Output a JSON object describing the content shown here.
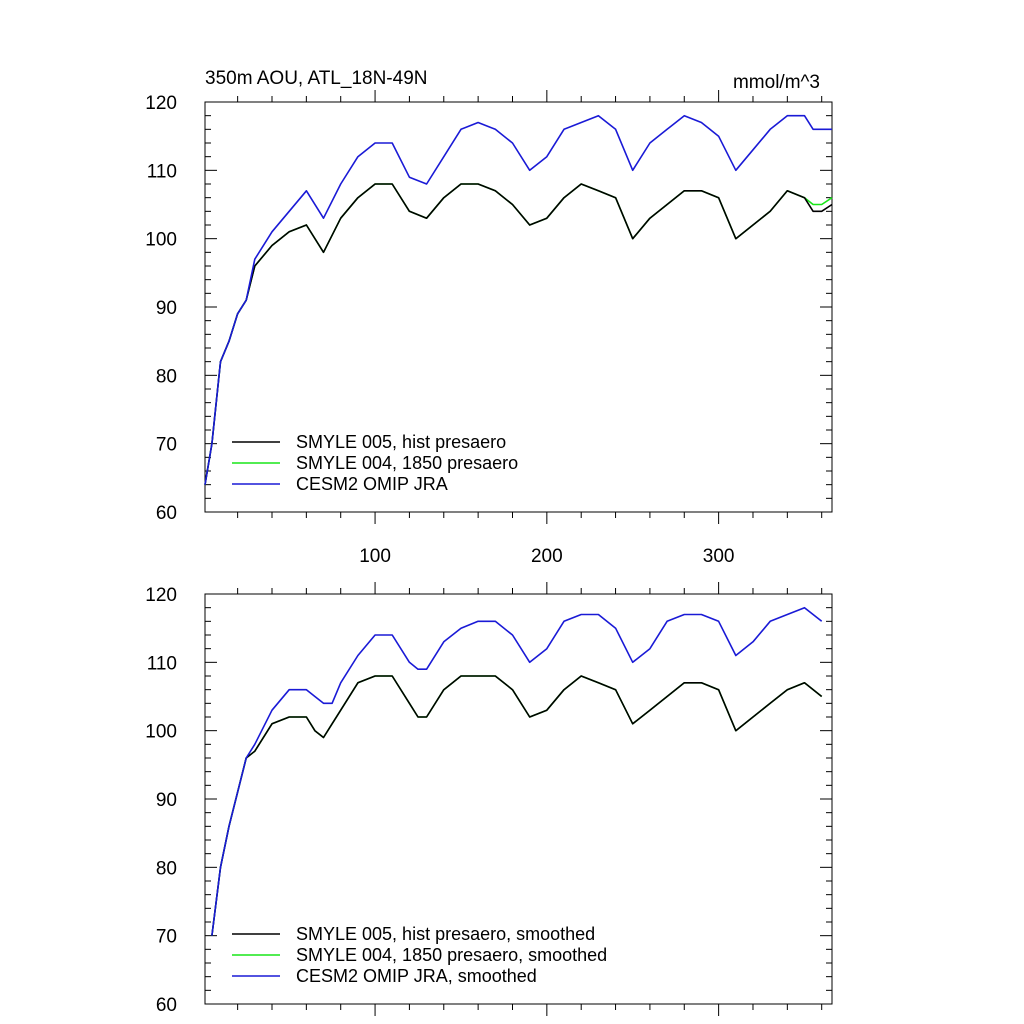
{
  "header": {
    "title": "350m AOU, ATL_18N-49N",
    "units": "mmol/m^3"
  },
  "colors": {
    "smyle005": "#000000",
    "smyle004": "#19e619",
    "cesm2": "#1a1ad6"
  },
  "chart_data": [
    {
      "type": "line",
      "panel": "top",
      "title": "350m AOU, ATL_18N-49N",
      "units_label": "mmol/m^3",
      "xlabel": "",
      "ylabel": "",
      "xlim": [
        1,
        366
      ],
      "ylim": [
        60,
        120
      ],
      "yticks": [
        "60",
        "70",
        "80",
        "90",
        "100",
        "110",
        "120"
      ],
      "xticks": [
        "100",
        "200",
        "300"
      ],
      "legend_placement": "bottom-left",
      "legend": [
        "SMYLE 005, hist presaero",
        "SMYLE 004, 1850 presaero",
        "CESM2 OMIP JRA"
      ],
      "series": [
        {
          "name": "SMYLE 005, hist presaero",
          "color": "#000000",
          "x": [
            1,
            5,
            10,
            15,
            20,
            25,
            30,
            40,
            50,
            60,
            70,
            80,
            90,
            100,
            110,
            120,
            130,
            140,
            150,
            160,
            170,
            180,
            190,
            200,
            210,
            220,
            230,
            240,
            250,
            260,
            270,
            280,
            290,
            300,
            310,
            320,
            330,
            340,
            350,
            355,
            360,
            366
          ],
          "y": [
            64,
            70,
            82,
            85,
            89,
            91,
            96,
            99,
            101,
            102,
            98,
            103,
            106,
            108,
            108,
            104,
            103,
            106,
            108,
            108,
            107,
            105,
            102,
            103,
            106,
            108,
            107,
            106,
            100,
            103,
            105,
            107,
            107,
            106,
            100,
            102,
            104,
            107,
            106,
            104,
            104,
            105
          ]
        },
        {
          "name": "SMYLE 004, 1850 presaero",
          "color": "#19e619",
          "x": [
            1,
            5,
            10,
            15,
            20,
            25,
            30,
            40,
            50,
            60,
            70,
            80,
            90,
            100,
            110,
            120,
            130,
            140,
            150,
            160,
            170,
            180,
            190,
            200,
            210,
            220,
            230,
            240,
            250,
            260,
            270,
            280,
            290,
            300,
            310,
            320,
            330,
            340,
            350,
            355,
            360,
            366
          ],
          "y": [
            64,
            70,
            82,
            85,
            89,
            91,
            96,
            99,
            101,
            102,
            98,
            103,
            106,
            108,
            108,
            104,
            103,
            106,
            108,
            108,
            107,
            105,
            102,
            103,
            106,
            108,
            107,
            106,
            100,
            103,
            105,
            107,
            107,
            106,
            100,
            102,
            104,
            107,
            106,
            105,
            105,
            106
          ]
        },
        {
          "name": "CESM2 OMIP JRA",
          "color": "#1a1ad6",
          "x": [
            1,
            5,
            10,
            15,
            20,
            25,
            30,
            40,
            50,
            60,
            70,
            80,
            90,
            100,
            110,
            120,
            130,
            140,
            150,
            160,
            170,
            180,
            190,
            200,
            210,
            220,
            230,
            240,
            250,
            260,
            270,
            280,
            290,
            300,
            310,
            320,
            330,
            340,
            350,
            355,
            360,
            366
          ],
          "y": [
            64,
            70,
            82,
            85,
            89,
            91,
            97,
            101,
            104,
            107,
            103,
            108,
            112,
            114,
            114,
            109,
            108,
            112,
            116,
            117,
            116,
            114,
            110,
            112,
            116,
            117,
            118,
            116,
            110,
            114,
            116,
            118,
            117,
            115,
            110,
            113,
            116,
            118,
            118,
            116,
            116,
            116
          ]
        }
      ]
    },
    {
      "type": "line",
      "panel": "bottom",
      "title": "",
      "xlabel": "",
      "ylabel": "",
      "xlim": [
        1,
        366
      ],
      "ylim": [
        60,
        120
      ],
      "yticks": [
        "60",
        "70",
        "80",
        "90",
        "100",
        "110",
        "120"
      ],
      "legend_placement": "bottom-left",
      "legend": [
        "SMYLE 005, hist presaero, smoothed",
        "SMYLE 004, 1850 presaero, smoothed",
        "CESM2 OMIP JRA, smoothed"
      ],
      "series": [
        {
          "name": "SMYLE 005, hist presaero, smoothed",
          "color": "#000000",
          "x": [
            5,
            10,
            15,
            20,
            25,
            30,
            40,
            50,
            60,
            65,
            70,
            75,
            80,
            90,
            100,
            110,
            120,
            125,
            130,
            140,
            150,
            160,
            170,
            180,
            190,
            200,
            210,
            220,
            230,
            240,
            250,
            260,
            270,
            280,
            290,
            300,
            310,
            320,
            330,
            340,
            350,
            360
          ],
          "y": [
            70,
            80,
            86,
            91,
            96,
            97,
            101,
            102,
            102,
            100,
            99,
            101,
            103,
            107,
            108,
            108,
            104,
            102,
            102,
            106,
            108,
            108,
            108,
            106,
            102,
            103,
            106,
            108,
            107,
            106,
            101,
            103,
            105,
            107,
            107,
            106,
            100,
            102,
            104,
            106,
            107,
            105
          ]
        },
        {
          "name": "SMYLE 004, 1850 presaero, smoothed",
          "color": "#19e619",
          "x": [
            5,
            10,
            15,
            20,
            25,
            30,
            40,
            50,
            60,
            65,
            70,
            75,
            80,
            90,
            100,
            110,
            120,
            125,
            130,
            140,
            150,
            160,
            170,
            180,
            190,
            200,
            210,
            220,
            230,
            240,
            250,
            260,
            270,
            280,
            290,
            300,
            310,
            320,
            330,
            340,
            350,
            360
          ],
          "y": [
            70,
            80,
            86,
            91,
            96,
            97,
            101,
            102,
            102,
            100,
            99,
            101,
            103,
            107,
            108,
            108,
            104,
            102,
            102,
            106,
            108,
            108,
            108,
            106,
            102,
            103,
            106,
            108,
            107,
            106,
            101,
            103,
            105,
            107,
            107,
            106,
            100,
            102,
            104,
            106,
            107,
            105
          ]
        },
        {
          "name": "CESM2 OMIP JRA, smoothed",
          "color": "#1a1ad6",
          "x": [
            5,
            10,
            15,
            20,
            25,
            30,
            40,
            50,
            60,
            65,
            70,
            75,
            80,
            90,
            100,
            110,
            120,
            125,
            130,
            140,
            150,
            160,
            170,
            180,
            190,
            200,
            210,
            220,
            230,
            240,
            250,
            260,
            270,
            280,
            290,
            300,
            310,
            320,
            330,
            340,
            350,
            360
          ],
          "y": [
            70,
            80,
            86,
            91,
            96,
            98,
            103,
            106,
            106,
            105,
            104,
            104,
            107,
            111,
            114,
            114,
            110,
            109,
            109,
            113,
            115,
            116,
            116,
            114,
            110,
            112,
            116,
            117,
            117,
            115,
            110,
            112,
            116,
            117,
            117,
            116,
            111,
            113,
            116,
            117,
            118,
            116
          ]
        }
      ]
    }
  ]
}
